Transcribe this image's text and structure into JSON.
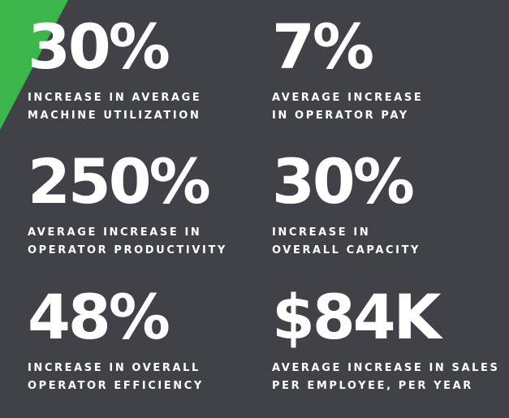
{
  "colors": {
    "background": "#414247",
    "accent": "#3cb54a",
    "text": "#ffffff"
  },
  "stats": [
    {
      "value": "30%",
      "label": [
        "INCREASE IN AVERAGE",
        "MACHINE UTILIZATION"
      ]
    },
    {
      "value": "7%",
      "label": [
        "AVERAGE INCREASE",
        "IN OPERATOR PAY"
      ]
    },
    {
      "value": "250%",
      "label": [
        "AVERAGE INCREASE IN",
        "OPERATOR PRODUCTIVITY"
      ]
    },
    {
      "value": "30%",
      "label": [
        "INCREASE IN",
        "OVERALL CAPACITY"
      ]
    },
    {
      "value": "48%",
      "label": [
        "INCREASE IN OVERALL",
        "OPERATOR EFFICIENCY"
      ]
    },
    {
      "value": "$84K",
      "label": [
        "AVERAGE INCREASE IN SALES",
        "PER EMPLOYEE, PER YEAR"
      ]
    }
  ]
}
